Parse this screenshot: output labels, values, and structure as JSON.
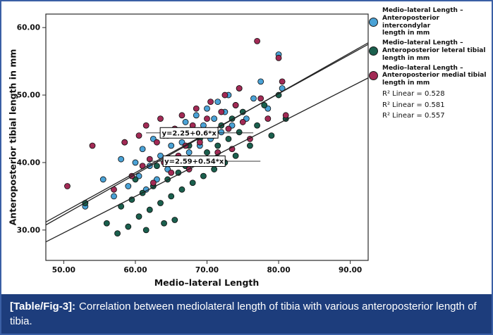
{
  "figure": {
    "border_color": "#3a5fa5"
  },
  "caption": {
    "label": "[Table/Fig-3]:",
    "text": "Correlation between mediolateral length of tibia with various anteroposterior length of tibia.",
    "bg_color": "#1d3d7c",
    "text_color": "#ffffff"
  },
  "legend": {
    "items": [
      {
        "color": "#4aa2d6",
        "lines": [
          "Medio–lateral Length –",
          "Anteroposterior intercondylar",
          "length in mm"
        ]
      },
      {
        "color": "#1a5f4d",
        "lines": [
          "Medio–lateral Length –",
          "Anteroposterior leteral tibial",
          "length in mm"
        ]
      },
      {
        "color": "#a22a55",
        "lines": [
          "Medio–lateral Length –",
          "Anteroposterior medial tibial",
          "length in mm"
        ]
      }
    ],
    "r2_labels": [
      "R² Linear = 0.528",
      "R² Linear = 0.581",
      "R² Linear = 0.557"
    ]
  },
  "chart_data": {
    "type": "scatter",
    "title": "",
    "xlabel": "Medio–lateral Length",
    "ylabel": "Anteroposterior tibial length in mm",
    "xlim": [
      47.5,
      92.5
    ],
    "ylim": [
      25.5,
      62
    ],
    "xticks": [
      50,
      60,
      70,
      80,
      90
    ],
    "yticks": [
      30,
      40,
      50,
      60
    ],
    "grid": false,
    "legend_position": "top-right",
    "series": [
      {
        "name": "Medio–lateral Length – Anteroposterior intercondylar length in mm",
        "color": "#4aa2d6",
        "r2": 0.528,
        "points": [
          [
            53.0,
            33.5
          ],
          [
            55.5,
            37.5
          ],
          [
            57.0,
            35.0
          ],
          [
            58.0,
            40.5
          ],
          [
            58.5,
            43.0
          ],
          [
            59.0,
            36.5
          ],
          [
            60.0,
            40.0
          ],
          [
            60.5,
            38.0
          ],
          [
            61.0,
            42.0
          ],
          [
            61.5,
            36.0
          ],
          [
            62.0,
            39.5
          ],
          [
            62.5,
            43.5
          ],
          [
            63.0,
            37.5
          ],
          [
            63.5,
            41.0
          ],
          [
            64.0,
            44.0
          ],
          [
            64.5,
            39.0
          ],
          [
            65.0,
            42.5
          ],
          [
            65.5,
            45.0
          ],
          [
            66.0,
            40.5
          ],
          [
            66.5,
            43.0
          ],
          [
            67.0,
            46.0
          ],
          [
            67.5,
            41.5
          ],
          [
            68.0,
            44.5
          ],
          [
            68.5,
            47.0
          ],
          [
            69.0,
            42.5
          ],
          [
            69.5,
            45.5
          ],
          [
            70.0,
            48.0
          ],
          [
            70.5,
            43.5
          ],
          [
            71.0,
            46.5
          ],
          [
            71.5,
            49.0
          ],
          [
            72.0,
            44.5
          ],
          [
            72.5,
            47.5
          ],
          [
            73.0,
            50.0
          ],
          [
            73.5,
            45.5
          ],
          [
            74.0,
            48.5
          ],
          [
            74.5,
            51.0
          ],
          [
            75.5,
            46.5
          ],
          [
            76.5,
            49.5
          ],
          [
            77.5,
            52.0
          ],
          [
            78.5,
            48.0
          ],
          [
            80.0,
            56.0
          ],
          [
            80.5,
            51.0
          ]
        ]
      },
      {
        "name": "Medio–lateral Length – Anteroposterior leteral tibial length in mm",
        "color": "#1a5f4d",
        "r2": 0.581,
        "points": [
          [
            53.0,
            34.0
          ],
          [
            56.0,
            31.0
          ],
          [
            57.5,
            29.5
          ],
          [
            58.0,
            33.5
          ],
          [
            59.0,
            30.5
          ],
          [
            59.5,
            34.5
          ],
          [
            60.0,
            37.5
          ],
          [
            60.5,
            32.0
          ],
          [
            61.0,
            35.5
          ],
          [
            61.5,
            30.0
          ],
          [
            62.0,
            33.0
          ],
          [
            62.5,
            36.5
          ],
          [
            63.0,
            39.5
          ],
          [
            63.5,
            34.0
          ],
          [
            64.0,
            31.0
          ],
          [
            64.5,
            37.5
          ],
          [
            65.0,
            35.0
          ],
          [
            65.5,
            31.5
          ],
          [
            66.0,
            38.5
          ],
          [
            66.5,
            36.0
          ],
          [
            67.0,
            39.5
          ],
          [
            67.5,
            42.5
          ],
          [
            68.0,
            37.0
          ],
          [
            68.5,
            40.5
          ],
          [
            69.0,
            43.5
          ],
          [
            69.5,
            38.0
          ],
          [
            70.0,
            41.5
          ],
          [
            70.5,
            44.5
          ],
          [
            71.0,
            39.0
          ],
          [
            71.5,
            42.5
          ],
          [
            72.0,
            45.5
          ],
          [
            72.5,
            40.0
          ],
          [
            73.0,
            43.5
          ],
          [
            73.5,
            46.5
          ],
          [
            74.0,
            41.0
          ],
          [
            74.5,
            44.5
          ],
          [
            75.0,
            47.5
          ],
          [
            76.0,
            42.5
          ],
          [
            77.0,
            45.5
          ],
          [
            78.0,
            48.5
          ],
          [
            79.0,
            44.0
          ],
          [
            80.0,
            50.0
          ],
          [
            81.0,
            46.5
          ]
        ]
      },
      {
        "name": "Medio–lateral Length – Anteroposterior medial tibial length in mm",
        "color": "#a22a55",
        "r2": 0.557,
        "points": [
          [
            50.5,
            36.5
          ],
          [
            54.0,
            42.5
          ],
          [
            57.0,
            36.0
          ],
          [
            58.5,
            43.0
          ],
          [
            59.5,
            38.0
          ],
          [
            60.5,
            44.0
          ],
          [
            61.0,
            39.5
          ],
          [
            61.5,
            45.5
          ],
          [
            62.0,
            40.5
          ],
          [
            62.5,
            37.0
          ],
          [
            63.0,
            43.0
          ],
          [
            63.5,
            46.5
          ],
          [
            64.0,
            40.0
          ],
          [
            64.5,
            44.0
          ],
          [
            65.0,
            38.5
          ],
          [
            65.5,
            45.0
          ],
          [
            66.0,
            41.0
          ],
          [
            66.5,
            47.0
          ],
          [
            67.0,
            42.5
          ],
          [
            67.5,
            39.0
          ],
          [
            68.0,
            45.5
          ],
          [
            68.5,
            48.0
          ],
          [
            69.0,
            43.0
          ],
          [
            69.5,
            40.0
          ],
          [
            70.0,
            46.5
          ],
          [
            70.5,
            49.0
          ],
          [
            71.0,
            44.0
          ],
          [
            71.5,
            41.5
          ],
          [
            72.0,
            47.5
          ],
          [
            72.5,
            50.0
          ],
          [
            73.0,
            45.0
          ],
          [
            73.5,
            42.0
          ],
          [
            74.0,
            48.5
          ],
          [
            74.5,
            51.0
          ],
          [
            75.0,
            46.0
          ],
          [
            76.0,
            43.5
          ],
          [
            77.0,
            58.0
          ],
          [
            77.5,
            49.5
          ],
          [
            78.5,
            46.5
          ],
          [
            80.0,
            55.5
          ],
          [
            80.5,
            52.0
          ],
          [
            81.0,
            47.0
          ]
        ]
      }
    ],
    "fit_lines": [
      {
        "label": "y=2.25+0.6*x",
        "intercept": 2.25,
        "slope": 0.6,
        "r2": 0.528
      },
      {
        "label": "",
        "intercept": 3.4,
        "slope": 0.585,
        "r2": 0.581
      },
      {
        "label": "y=2.59+0.54*x",
        "intercept": 2.59,
        "slope": 0.54,
        "r2": 0.557
      }
    ],
    "annotations": [
      {
        "text": "y=2.25+0.6*x",
        "x": 67.5,
        "y": 44.4
      },
      {
        "text": "y=2.59+0.54*x",
        "x": 68.2,
        "y": 40.2
      }
    ]
  }
}
